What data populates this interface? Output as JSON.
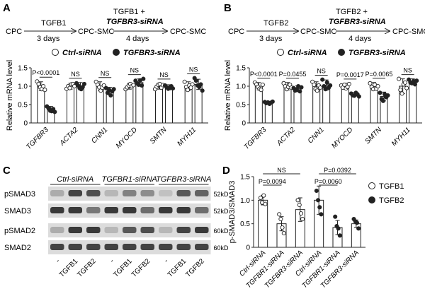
{
  "panels": {
    "A": {
      "letter": "A",
      "scheme": {
        "start": "CPC",
        "step1": "TGFB1",
        "days1": "3 days",
        "mid": "CPC-SMC",
        "step2a": "TGFB1 +",
        "step2b": "TGFBR3-siRNA",
        "days2": "4 days",
        "end": "CPC-SMC"
      },
      "legend": {
        "open": "Ctrl-siRNA",
        "filled": "TGFBR3-siRNA"
      }
    },
    "B": {
      "letter": "B",
      "scheme": {
        "start": "CPC",
        "step1": "TGFB2",
        "days1": "3 days",
        "mid": "CPC-SMC",
        "step2a": "TGFB2 +",
        "step2b": "TGFBR3-siRNA",
        "days2": "4 days",
        "end": "CPC-SMC"
      },
      "legend": {
        "open": "Ctrl-siRNA",
        "filled": "TGFBR3-siRNA"
      }
    },
    "C": {
      "letter": "C",
      "groups": [
        "Ctrl-siRNA",
        "TGFBR1-siRNA",
        "TGFBR3-siRNA"
      ],
      "bands": [
        {
          "label": "pSMAD3",
          "kd": "52kD"
        },
        {
          "label": "SMAD3",
          "kd": "52kD"
        },
        {
          "label": "pSMAD2",
          "kd": "60kD"
        },
        {
          "label": "SMAD2",
          "kd": "60kD"
        }
      ],
      "lanes": [
        "-",
        "TGFB1",
        "TGFB2",
        "-",
        "TGFB1",
        "TGFB2",
        "-",
        "TGFB1",
        "TGFB2"
      ]
    },
    "D": {
      "letter": "D",
      "legend": {
        "open": "TGFB1",
        "filled": "TGFB2"
      }
    }
  },
  "chart_data": [
    {
      "type": "bar",
      "panel": "A",
      "ylabel": "Relative mRNA level",
      "ylim": [
        0,
        1.5
      ],
      "yticks": [
        "0",
        "0.5",
        "1.0",
        "1.5"
      ],
      "categories": [
        "TGFBR3",
        "ACTA2",
        "CNN1",
        "MYOCD",
        "SMTN",
        "MYH11"
      ],
      "series": [
        {
          "name": "Ctrl-siRNA",
          "fill": "open",
          "values": [
            1.0,
            1.0,
            1.0,
            1.0,
            1.0,
            1.0
          ],
          "err": [
            0.12,
            0.08,
            0.12,
            0.08,
            0.08,
            0.12
          ],
          "points": [
            [
              1.13,
              1.06,
              0.97,
              0.92,
              1.0,
              0.9
            ],
            [
              0.93,
              1.0,
              0.95,
              1.05,
              1.06,
              1.0
            ],
            [
              1.12,
              1.04,
              0.97,
              0.88,
              0.96,
              1.02
            ],
            [
              0.92,
              0.97,
              1.02,
              1.06,
              1.0,
              1.03
            ],
            [
              0.92,
              0.99,
              1.04,
              1.06,
              0.96,
              1.03
            ],
            [
              1.12,
              0.98,
              0.9,
              1.02,
              0.96,
              1.05
            ]
          ]
        },
        {
          "name": "TGFBR3-siRNA",
          "fill": "filled",
          "values": [
            0.37,
            1.0,
            0.87,
            1.1,
            0.97,
            1.05
          ],
          "err": [
            0.08,
            0.1,
            0.1,
            0.1,
            0.07,
            0.14
          ],
          "points": [
            [
              0.45,
              0.4,
              0.34,
              0.32,
              0.38,
              0.3
            ],
            [
              1.08,
              1.02,
              0.95,
              0.92,
              0.98,
              1.06
            ],
            [
              0.95,
              0.82,
              0.9,
              0.75,
              0.86,
              0.92
            ],
            [
              1.15,
              1.08,
              1.04,
              1.16,
              1.02,
              1.2
            ],
            [
              1.02,
              0.97,
              0.93,
              0.96,
              1.0,
              0.94
            ],
            [
              1.22,
              1.15,
              1.02,
              0.98,
              1.05,
              0.88
            ]
          ]
        }
      ],
      "stats": [
        "P<0.0001",
        "NS",
        "NS",
        "NS",
        "NS",
        "NS"
      ]
    },
    {
      "type": "bar",
      "panel": "B",
      "ylabel": "Relative mRNA level",
      "ylim": [
        0,
        1.5
      ],
      "yticks": [
        "0",
        "0.5",
        "1.0",
        "1.5"
      ],
      "categories": [
        "TGFBR3",
        "ACTA2",
        "CNN1",
        "MYOCD",
        "SMTN",
        "MYH11"
      ],
      "series": [
        {
          "name": "Ctrl-siRNA",
          "fill": "open",
          "values": [
            1.0,
            1.0,
            1.0,
            1.0,
            1.0,
            1.0
          ],
          "err": [
            0.1,
            0.1,
            0.12,
            0.08,
            0.1,
            0.2
          ],
          "points": [
            [
              1.1,
              1.05,
              0.98,
              0.93,
              0.9,
              1.04
            ],
            [
              1.08,
              1.0,
              0.92,
              0.98,
              1.04,
              0.96
            ],
            [
              1.12,
              1.04,
              0.93,
              0.88,
              1.02,
              0.96
            ],
            [
              1.02,
              0.96,
              1.04,
              0.94,
              0.98,
              1.06
            ],
            [
              1.08,
              0.98,
              0.92,
              1.04,
              0.93,
              1.0
            ],
            [
              1.2,
              0.9,
              0.8,
              1.05,
              1.1,
              0.95
            ]
          ]
        },
        {
          "name": "TGFBR3-siRNA",
          "fill": "filled",
          "values": [
            0.55,
            0.93,
            1.03,
            0.78,
            0.72,
            1.12
          ],
          "err": [
            0.04,
            0.08,
            0.14,
            0.05,
            0.12,
            0.08
          ],
          "points": [
            [
              0.57,
              0.54,
              0.56,
              0.52,
              0.55,
              0.58
            ],
            [
              0.95,
              0.88,
              0.92,
              1.0,
              0.86,
              0.97
            ],
            [
              1.18,
              1.0,
              0.92,
              1.1,
              0.96,
              1.02
            ],
            [
              0.8,
              0.75,
              0.74,
              0.82,
              0.78,
              0.72
            ],
            [
              0.82,
              0.65,
              0.6,
              0.78,
              0.7,
              0.75
            ],
            [
              1.18,
              1.1,
              1.08,
              1.14,
              1.05,
              1.15
            ]
          ]
        }
      ],
      "stats": [
        "P<0.0001",
        "P=0.0455",
        "NS",
        "P=0.0017",
        "P=0.0065",
        "NS"
      ]
    },
    {
      "type": "bar",
      "panel": "D",
      "ylabel": "p-SMAD3/SMAD3",
      "ylim": [
        0,
        1.5
      ],
      "yticks": [
        "0",
        "0.5",
        "1.0",
        "1.5"
      ],
      "categories": [
        "Ctrl-siRNA",
        "TGFBR1-siRNA",
        "TGFBR3-siRNA",
        "Ctrl-siRNA",
        "TGFBR1-siRNA",
        "TGFBR3-siRNA"
      ],
      "fills": [
        "open",
        "open",
        "open",
        "filled",
        "filled",
        "filled"
      ],
      "values": [
        1.0,
        0.5,
        0.8,
        1.0,
        0.42,
        0.5
      ],
      "err": [
        0.1,
        0.15,
        0.25,
        0.3,
        0.15,
        0.08
      ],
      "points": [
        [
          1.05,
          0.95,
          1.1,
          0.92
        ],
        [
          0.7,
          0.6,
          0.42,
          0.3
        ],
        [
          1.0,
          0.9,
          0.72,
          0.6
        ],
        [
          1.2,
          1.0,
          0.85,
          0.7
        ],
        [
          0.65,
          0.45,
          0.4,
          0.25
        ],
        [
          0.6,
          0.55,
          0.52,
          0.4
        ]
      ],
      "stats": [
        {
          "text": "NS",
          "from": 0,
          "to": 2
        },
        {
          "text": "P=0.0094",
          "from": 0,
          "to": 1
        },
        {
          "text": "P=0.0392",
          "from": 3,
          "to": 5
        },
        {
          "text": "P=0.0060",
          "from": 3,
          "to": 4
        }
      ]
    }
  ]
}
